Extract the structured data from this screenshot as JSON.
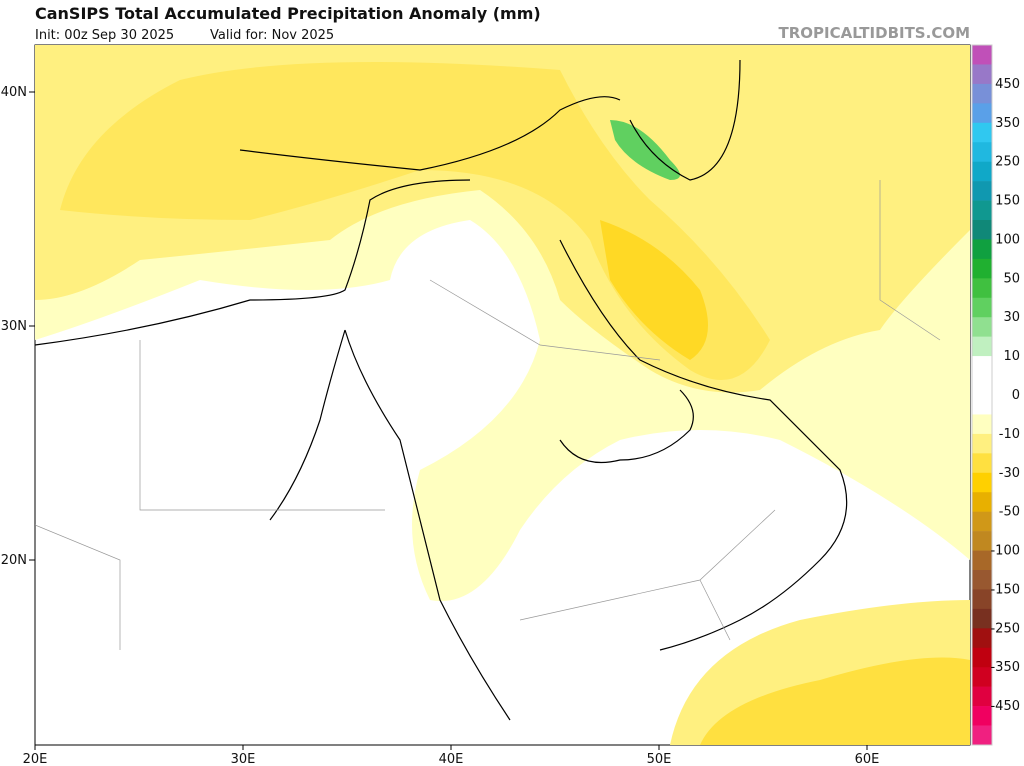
{
  "header": {
    "title": "CanSIPS Total Accumulated Precipitation Anomaly (mm)",
    "init": "Init: 00z Sep 30 2025",
    "valid": "Valid for: Nov 2025",
    "source": "TROPICALTIDBITS.COM"
  },
  "map": {
    "lat_labels": [
      "40N",
      "30N",
      "20N"
    ],
    "lon_labels": [
      "20E",
      "30E",
      "40E",
      "50E",
      "60E"
    ]
  },
  "colorbar": {
    "labels": [
      450,
      350,
      250,
      150,
      100,
      50,
      30,
      10,
      0,
      -10,
      -30,
      -50,
      -100,
      -150,
      -250,
      -350,
      -450
    ],
    "colors": [
      "#c050b8",
      "#9878c8",
      "#7890d8",
      "#5aa0e8",
      "#30c8f0",
      "#20b8e0",
      "#10a8c8",
      "#1098b0",
      "#109890",
      "#108878",
      "#10a040",
      "#20b030",
      "#40c040",
      "#60d060",
      "#90e090",
      "#c0f0c0",
      "#ffffff",
      "#ffffff",
      "#ffffff",
      "#ffffc0",
      "#fff080",
      "#ffe040",
      "#ffd000",
      "#e8b000",
      "#d09818",
      "#c08820",
      "#a86828",
      "#985830",
      "#884428",
      "#783020",
      "#a01010",
      "#c00010",
      "#d00020",
      "#e00040",
      "#f00060",
      "#f02080"
    ]
  }
}
